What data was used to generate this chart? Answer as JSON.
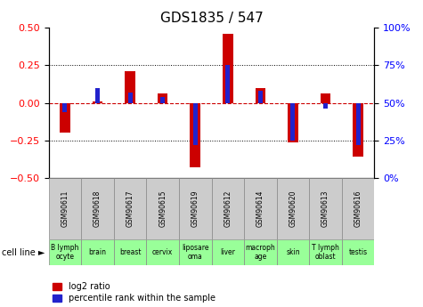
{
  "title": "GDS1835 / 547",
  "samples": [
    "GSM90611",
    "GSM90618",
    "GSM90617",
    "GSM90615",
    "GSM90619",
    "GSM90612",
    "GSM90614",
    "GSM90620",
    "GSM90613",
    "GSM90616"
  ],
  "cell_lines": [
    "B lymph\nocyte",
    "brain",
    "breast",
    "cervix",
    "liposare\noma",
    "liver",
    "macroph\nage",
    "skin",
    "T lymph\noblast",
    "testis"
  ],
  "log2_ratio": [
    -0.2,
    0.01,
    0.21,
    0.06,
    -0.43,
    0.46,
    0.1,
    -0.26,
    0.06,
    -0.36
  ],
  "percentile_rank": [
    44,
    60,
    57,
    54,
    22,
    75,
    58,
    25,
    46,
    22
  ],
  "ylim": [
    -0.5,
    0.5
  ],
  "right_ylim": [
    0,
    100
  ],
  "bar_color_red": "#cc0000",
  "bar_color_blue": "#2222cc",
  "dashed_color": "#cc0000",
  "yticks_left": [
    -0.5,
    -0.25,
    0.0,
    0.25,
    0.5
  ],
  "yticks_right": [
    0,
    25,
    50,
    75,
    100
  ],
  "bar_width": 0.32,
  "blue_bar_width": 0.14,
  "gray_box": "#cccccc",
  "green_box": "#99ff99",
  "cell_line_label": "cell line ►"
}
